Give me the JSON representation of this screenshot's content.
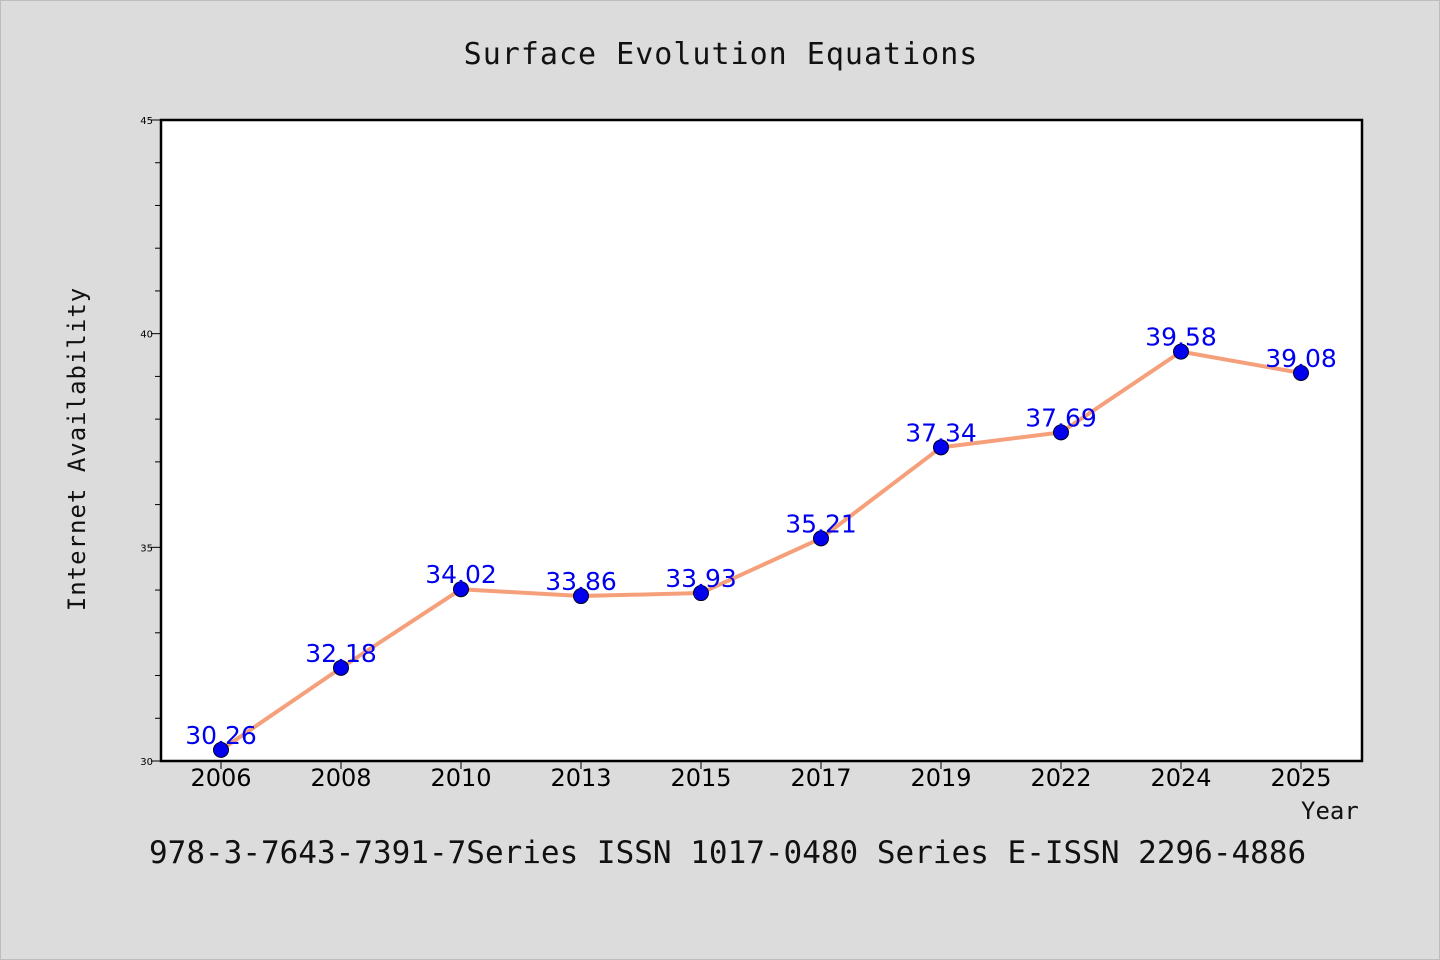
{
  "chart_data": {
    "type": "line",
    "title": "Surface Evolution Equations",
    "xlabel": "Year",
    "ylabel": "Internet Availability",
    "categories": [
      "2006",
      "2008",
      "2010",
      "2013",
      "2015",
      "2017",
      "2019",
      "2022",
      "2024",
      "2025"
    ],
    "series": [
      {
        "values": [
          30.26,
          32.18,
          34.02,
          33.86,
          33.93,
          35.21,
          37.34,
          37.69,
          39.58,
          39.08
        ]
      }
    ],
    "data_labels": [
      "30.26",
      "32.18",
      "34.02",
      "33.86",
      "33.93",
      "35.21",
      "37.34",
      "37.69",
      "39.58",
      "39.08"
    ],
    "ylim": [
      30,
      45
    ],
    "yticks": [
      "30",
      "35",
      "40",
      "45"
    ],
    "grid": false,
    "line_color": "#f5a07a",
    "marker_color": "#0000ee",
    "label_color": "#0000ee",
    "plot_background": "#ffffff",
    "figure_background": "#dcdcdc"
  },
  "footnote": "978-3-7643-7391-7Series ISSN 1017-0480 Series E-ISSN 2296-4886"
}
